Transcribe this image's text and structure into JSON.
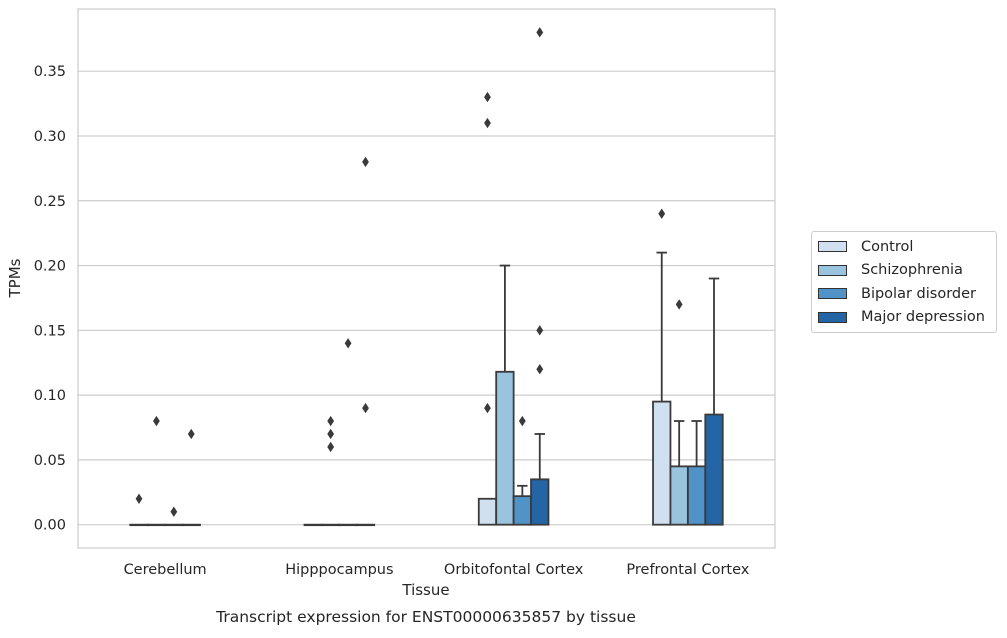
{
  "chart_data": {
    "type": "bar",
    "title": "Transcript expression for ENST00000635857 by tissue",
    "xlabel": "Tissue",
    "ylabel": "TPMs",
    "ylim": [
      -0.018,
      0.398
    ],
    "yticks": [
      "0.00",
      "0.05",
      "0.10",
      "0.15",
      "0.20",
      "0.25",
      "0.30",
      "0.35"
    ],
    "grid": true,
    "legend_position": "right",
    "categories": [
      "Cerebellum",
      "Hipppocampus",
      "Orbitofontal Cortex",
      "Prefrontal Cortex"
    ],
    "series": [
      {
        "name": "Control",
        "color": "#d1e0f0",
        "values": [
          0.0,
          0.0,
          0.02,
          0.095
        ],
        "whisker_top": [
          0.0,
          0.0,
          0.02,
          0.21
        ],
        "outliers": [
          [
            0.02
          ],
          [],
          [
            0.09,
            0.31,
            0.33
          ],
          [
            0.24
          ]
        ]
      },
      {
        "name": "Schizophrenia",
        "color": "#9ac4de",
        "values": [
          0.0,
          0.0,
          0.118,
          0.045
        ],
        "whisker_top": [
          0.0,
          0.0,
          0.2,
          0.08
        ],
        "outliers": [
          [
            0.08
          ],
          [
            0.06,
            0.07,
            0.08
          ],
          [],
          [
            0.17
          ]
        ]
      },
      {
        "name": "Bipolar disorder",
        "color": "#5193c6",
        "values": [
          0.0,
          0.0,
          0.022,
          0.045
        ],
        "whisker_top": [
          0.0,
          0.0,
          0.03,
          0.08
        ],
        "outliers": [
          [
            0.01
          ],
          [
            0.14
          ],
          [
            0.08
          ],
          []
        ]
      },
      {
        "name": "Major depression",
        "color": "#2465a6",
        "values": [
          0.0,
          0.0,
          0.035,
          0.085
        ],
        "whisker_top": [
          0.0,
          0.0,
          0.07,
          0.19
        ],
        "outliers": [
          [
            0.07
          ],
          [
            0.09,
            0.28
          ],
          [
            0.12,
            0.15,
            0.38
          ],
          []
        ]
      }
    ]
  }
}
